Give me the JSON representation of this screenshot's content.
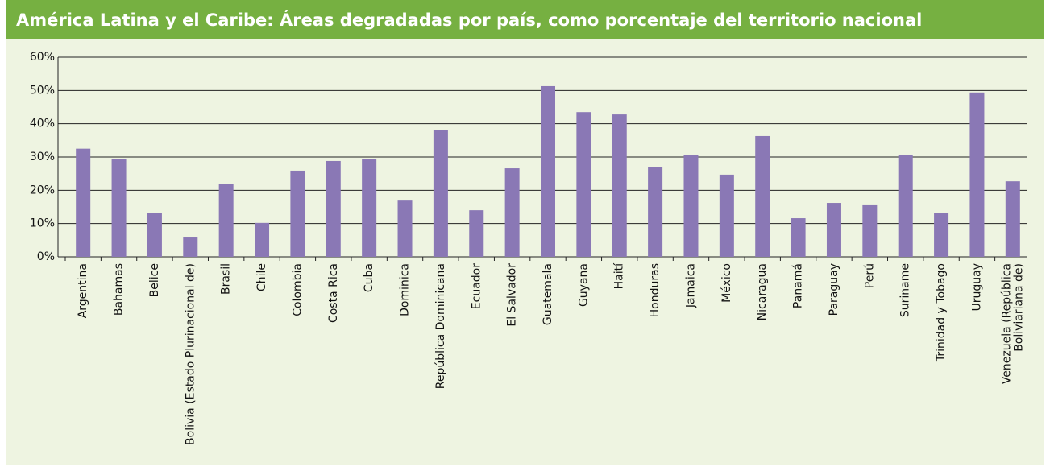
{
  "chart_data": {
    "type": "bar",
    "title": "América Latina y el Caribe: Áreas degradadas por país, como porcentaje del territorio nacional",
    "categories": [
      "Argentina",
      "Bahamas",
      "Belice",
      "Bolivia (Estado Plurinacional de)",
      "Brasil",
      "Chile",
      "Colombia",
      "Costa Rica",
      "Cuba",
      "Dominica",
      "República Dominicana",
      "Ecuador",
      "El Salvador",
      "Guatemala",
      "Guyana",
      "Haití",
      "Honduras",
      "Jamaica",
      "México",
      "Nicaragua",
      "Panamá",
      "Paraguay",
      "Perú",
      "Suriname",
      "Trinidad y Tobago",
      "Uruguay",
      "Venezuela (República\nBoliviariana de)"
    ],
    "values": [
      32.5,
      29.5,
      13.3,
      5.8,
      22,
      10.2,
      25.9,
      28.8,
      29.3,
      16.9,
      38,
      14,
      26.6,
      51.3,
      43.5,
      42.8,
      26.9,
      30.7,
      24.7,
      36.3,
      11.6,
      16.2,
      15.5,
      30.7,
      13.3,
      49.4,
      22.7
    ],
    "color": "#8a78b5",
    "ylim": [
      0,
      60
    ],
    "yticks": [
      {
        "value": 0,
        "label": "0%"
      },
      {
        "value": 10,
        "label": "10%"
      },
      {
        "value": 20,
        "label": "20%"
      },
      {
        "value": 30,
        "label": "30%"
      },
      {
        "value": 40,
        "label": "40%"
      },
      {
        "value": 50,
        "label": "50%"
      },
      {
        "value": 60,
        "label": "60%"
      }
    ],
    "grid": true
  }
}
